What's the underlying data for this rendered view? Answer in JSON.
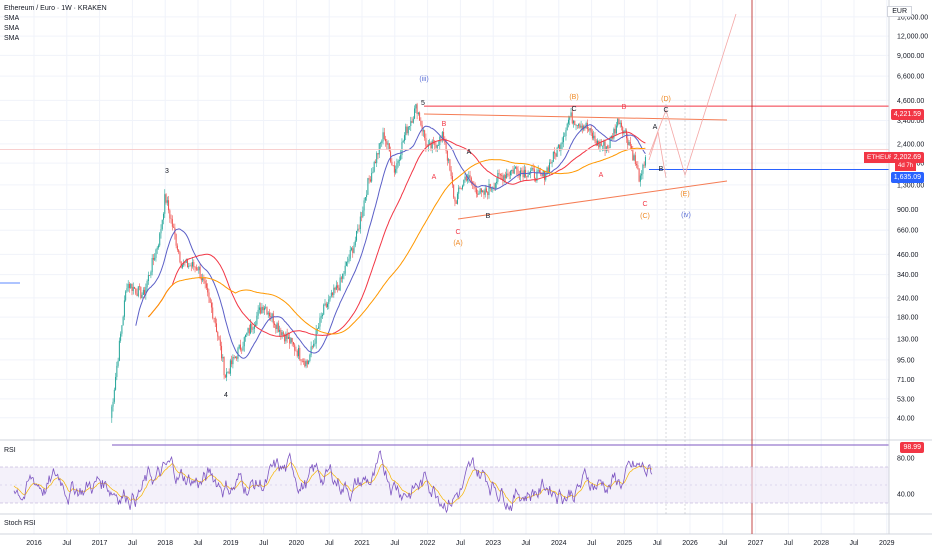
{
  "header": {
    "title": "Ethereum / Euro · 1W · KRAKEN",
    "indicators": [
      "SMA",
      "SMA",
      "SMA"
    ],
    "currency": "EUR"
  },
  "panes": {
    "rsi_label": "RSI",
    "stoch_label": "Stoch RSI"
  },
  "price_scale": {
    "ticks": [
      "16,000.00",
      "12,000.00",
      "9,000.00",
      "6,600.00",
      "4,600.00",
      "3,400.00",
      "2,400.00",
      "1,800.00",
      "1,300.00",
      "900.00",
      "660.00",
      "460.00",
      "340.00",
      "240.00",
      "180.00",
      "130.00",
      "95.00",
      "71.00",
      "53.00",
      "40.00"
    ],
    "badges": {
      "resistance": "4,221.59",
      "symbol": "ETHEUR",
      "last_price": "2,202.69",
      "countdown": "4d 7h",
      "support": "1,635.09"
    }
  },
  "rsi_scale": {
    "ticks": [
      "80.00",
      "40.00"
    ],
    "badge": "98.99"
  },
  "time_axis": {
    "ticks": [
      "2016",
      "Jul",
      "2017",
      "Jul",
      "2018",
      "Jul",
      "2019",
      "Jul",
      "2020",
      "Jul",
      "2021",
      "Jul",
      "2022",
      "Jul",
      "2023",
      "Jul",
      "2024",
      "Jul",
      "2025",
      "Jul",
      "2026",
      "Jul",
      "2027",
      "Jul",
      "2028",
      "Jul",
      "2029"
    ]
  },
  "colors": {
    "up": "#26a69a",
    "down": "#ef5350",
    "sma_fast": "#5b5fc7",
    "sma_mid": "#f23645",
    "sma_slow": "#ff9800",
    "rsi": "#7e57c2",
    "rsi_ma": "#f7b500",
    "triangle": "#f57c54",
    "resistance": "#f23645",
    "support": "#2962ff",
    "wave_red": "#f23645",
    "wave_orange": "#ef8a25",
    "wave_blue": "#5b6fd6",
    "wave_black": "#131722",
    "target_line": "#f4a7a6"
  },
  "waves": {
    "primary": [
      "3",
      "4",
      "5"
    ],
    "degree": [
      "(iii)",
      "(iv)"
    ],
    "orange": [
      "(A)",
      "(B)",
      "(C)",
      "(D)",
      "(E)"
    ],
    "red": [
      "A",
      "B",
      "C",
      "A",
      "B",
      "C"
    ],
    "black": [
      "A",
      "B",
      "C",
      "A",
      "B",
      "C"
    ]
  },
  "chart_data": {
    "type": "candlestick",
    "title": "Ethereum / Euro · 1W · KRAKEN",
    "y_scale": "log",
    "ylim": [
      30,
      20000
    ],
    "xlim": [
      "2016-01",
      "2029-01"
    ],
    "series": [
      {
        "name": "ETHEUR",
        "x": [
          "2017-03",
          "2017-06",
          "2017-09",
          "2017-12",
          "2018-01",
          "2018-04",
          "2018-07",
          "2018-10",
          "2018-12",
          "2019-04",
          "2019-07",
          "2019-10",
          "2020-03",
          "2020-06",
          "2020-09",
          "2020-12",
          "2021-02",
          "2021-05",
          "2021-07",
          "2021-09",
          "2021-11",
          "2022-01",
          "2022-04",
          "2022-06",
          "2022-08",
          "2022-11",
          "2023-02",
          "2023-05",
          "2023-08",
          "2023-10",
          "2024-01",
          "2024-03",
          "2024-06",
          "2024-08",
          "2024-10",
          "2024-12",
          "2025-02",
          "2025-04",
          "2025-05"
        ],
        "close": [
          40,
          300,
          250,
          600,
          1100,
          400,
          380,
          180,
          75,
          140,
          220,
          150,
          90,
          200,
          300,
          600,
          1300,
          2800,
          1600,
          2900,
          4200,
          2200,
          2700,
          1000,
          1500,
          1100,
          1450,
          1650,
          1550,
          1450,
          2300,
          3600,
          3100,
          2400,
          2300,
          3500,
          2400,
          1350,
          2202.69
        ]
      }
    ],
    "levels": {
      "resistance": 4221.59,
      "last": 2202.69,
      "support": 1635.09
    },
    "rsi": {
      "ticks": [
        80,
        40
      ],
      "last": 98.99
    }
  }
}
